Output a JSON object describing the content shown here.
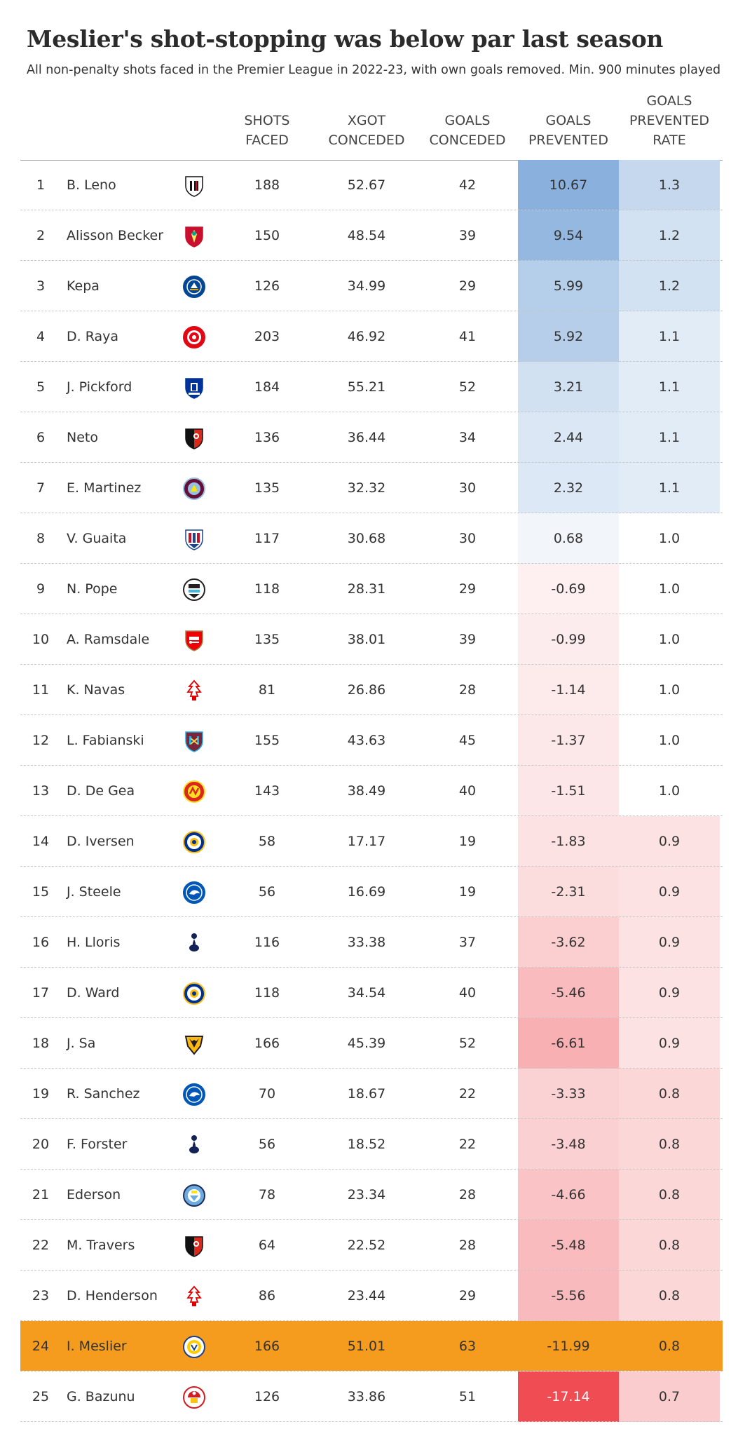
{
  "chart_data": {
    "type": "table",
    "title": "Meslier's shot-stopping was below par last season",
    "subtitle": "All non-penalty shots faced in the Premier League in 2022-23, with own goals removed. Min. 900 minutes played",
    "columns": [
      {
        "key": "shots",
        "lines": [
          "SHOTS",
          "FACED"
        ]
      },
      {
        "key": "xgot",
        "lines": [
          "XGOT",
          "CONCEDED"
        ]
      },
      {
        "key": "gc",
        "lines": [
          "GOALS",
          "CONCEDED"
        ]
      },
      {
        "key": "gp",
        "lines": [
          "GOALS",
          "PREVENTED"
        ]
      },
      {
        "key": "gpr",
        "lines": [
          "GOALS",
          "PREVENTED",
          "RATE"
        ]
      }
    ],
    "highlight_color": "#f59c1f",
    "positive_color": "#8ab1dd",
    "negative_color": "#f0484f",
    "rows": [
      {
        "rank": "1",
        "name": "B. Leno",
        "crest": "fulham-crest-icon",
        "shots": "188",
        "xgot": "52.67",
        "gc": "42",
        "gp": "10.67",
        "gpr": "1.3"
      },
      {
        "rank": "2",
        "name": "Alisson Becker",
        "crest": "liverpool-crest-icon",
        "shots": "150",
        "xgot": "48.54",
        "gc": "39",
        "gp": "9.54",
        "gpr": "1.2"
      },
      {
        "rank": "3",
        "name": "Kepa",
        "crest": "chelsea-crest-icon",
        "shots": "126",
        "xgot": "34.99",
        "gc": "29",
        "gp": "5.99",
        "gpr": "1.2"
      },
      {
        "rank": "4",
        "name": "D. Raya",
        "crest": "brentford-crest-icon",
        "shots": "203",
        "xgot": "46.92",
        "gc": "41",
        "gp": "5.92",
        "gpr": "1.1"
      },
      {
        "rank": "5",
        "name": "J. Pickford",
        "crest": "everton-crest-icon",
        "shots": "184",
        "xgot": "55.21",
        "gc": "52",
        "gp": "3.21",
        "gpr": "1.1"
      },
      {
        "rank": "6",
        "name": "Neto",
        "crest": "bournemouth-crest-icon",
        "shots": "136",
        "xgot": "36.44",
        "gc": "34",
        "gp": "2.44",
        "gpr": "1.1"
      },
      {
        "rank": "7",
        "name": "E. Martinez",
        "crest": "aston-villa-crest-icon",
        "shots": "135",
        "xgot": "32.32",
        "gc": "30",
        "gp": "2.32",
        "gpr": "1.1"
      },
      {
        "rank": "8",
        "name": "V. Guaita",
        "crest": "crystal-palace-crest-icon",
        "shots": "117",
        "xgot": "30.68",
        "gc": "30",
        "gp": "0.68",
        "gpr": "1.0"
      },
      {
        "rank": "9",
        "name": "N. Pope",
        "crest": "newcastle-crest-icon",
        "shots": "118",
        "xgot": "28.31",
        "gc": "29",
        "gp": "-0.69",
        "gpr": "1.0"
      },
      {
        "rank": "10",
        "name": "A. Ramsdale",
        "crest": "arsenal-crest-icon",
        "shots": "135",
        "xgot": "38.01",
        "gc": "39",
        "gp": "-0.99",
        "gpr": "1.0"
      },
      {
        "rank": "11",
        "name": "K. Navas",
        "crest": "nottingham-forest-crest-icon",
        "shots": "81",
        "xgot": "26.86",
        "gc": "28",
        "gp": "-1.14",
        "gpr": "1.0"
      },
      {
        "rank": "12",
        "name": "L. Fabianski",
        "crest": "west-ham-crest-icon",
        "shots": "155",
        "xgot": "43.63",
        "gc": "45",
        "gp": "-1.37",
        "gpr": "1.0"
      },
      {
        "rank": "13",
        "name": "D. De Gea",
        "crest": "manchester-united-crest-icon",
        "shots": "143",
        "xgot": "38.49",
        "gc": "40",
        "gp": "-1.51",
        "gpr": "1.0"
      },
      {
        "rank": "14",
        "name": "D. Iversen",
        "crest": "leicester-crest-icon",
        "shots": "58",
        "xgot": "17.17",
        "gc": "19",
        "gp": "-1.83",
        "gpr": "0.9"
      },
      {
        "rank": "15",
        "name": "J. Steele",
        "crest": "brighton-crest-icon",
        "shots": "56",
        "xgot": "16.69",
        "gc": "19",
        "gp": "-2.31",
        "gpr": "0.9"
      },
      {
        "rank": "16",
        "name": "H. Lloris",
        "crest": "tottenham-crest-icon",
        "shots": "116",
        "xgot": "33.38",
        "gc": "37",
        "gp": "-3.62",
        "gpr": "0.9"
      },
      {
        "rank": "17",
        "name": "D. Ward",
        "crest": "leicester-crest-icon",
        "shots": "118",
        "xgot": "34.54",
        "gc": "40",
        "gp": "-5.46",
        "gpr": "0.9"
      },
      {
        "rank": "18",
        "name": "J. Sa",
        "crest": "wolves-crest-icon",
        "shots": "166",
        "xgot": "45.39",
        "gc": "52",
        "gp": "-6.61",
        "gpr": "0.9"
      },
      {
        "rank": "19",
        "name": "R. Sanchez",
        "crest": "brighton-crest-icon",
        "shots": "70",
        "xgot": "18.67",
        "gc": "22",
        "gp": "-3.33",
        "gpr": "0.8"
      },
      {
        "rank": "20",
        "name": "F. Forster",
        "crest": "tottenham-crest-icon",
        "shots": "56",
        "xgot": "18.52",
        "gc": "22",
        "gp": "-3.48",
        "gpr": "0.8"
      },
      {
        "rank": "21",
        "name": "Ederson",
        "crest": "manchester-city-crest-icon",
        "shots": "78",
        "xgot": "23.34",
        "gc": "28",
        "gp": "-4.66",
        "gpr": "0.8"
      },
      {
        "rank": "22",
        "name": "M. Travers",
        "crest": "bournemouth-crest-icon",
        "shots": "64",
        "xgot": "22.52",
        "gc": "28",
        "gp": "-5.48",
        "gpr": "0.8"
      },
      {
        "rank": "23",
        "name": "D. Henderson",
        "crest": "nottingham-forest-crest-icon",
        "shots": "86",
        "xgot": "23.44",
        "gc": "29",
        "gp": "-5.56",
        "gpr": "0.8"
      },
      {
        "rank": "24",
        "name": "I. Meslier",
        "crest": "leeds-crest-icon",
        "shots": "166",
        "xgot": "51.01",
        "gc": "63",
        "gp": "-11.99",
        "gpr": "0.8",
        "highlight": true
      },
      {
        "rank": "25",
        "name": "G. Bazunu",
        "crest": "southampton-crest-icon",
        "shots": "126",
        "xgot": "33.86",
        "gc": "51",
        "gp": "-17.14",
        "gpr": "0.7"
      }
    ]
  }
}
